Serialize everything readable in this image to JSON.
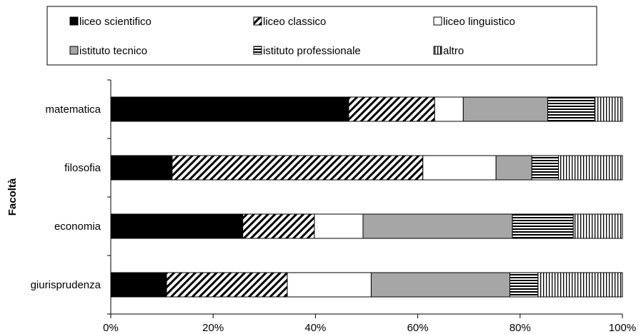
{
  "chart_data": {
    "type": "bar",
    "orientation": "horizontal",
    "stacking": "percent",
    "ylabel": "Facoltà",
    "xlabel": "",
    "xlim": [
      0,
      100
    ],
    "x_ticks": [
      "0%",
      "20%",
      "40%",
      "60%",
      "80%",
      "100%"
    ],
    "categories": [
      "matematica",
      "filosofia",
      "economia",
      "giurisprudenza"
    ],
    "series": [
      {
        "name": "liceo scientifico",
        "pattern": "solid-black",
        "values": [
          46.5,
          12.0,
          25.8,
          10.9
        ]
      },
      {
        "name": "liceo classico",
        "pattern": "diagonal-hatch",
        "values": [
          16.8,
          49.0,
          14.0,
          23.6
        ]
      },
      {
        "name": "liceo linguistico",
        "pattern": "white",
        "values": [
          5.6,
          14.3,
          9.5,
          16.4
        ]
      },
      {
        "name": "istituto tecnico",
        "pattern": "solid-gray",
        "values": [
          16.5,
          7.0,
          29.2,
          27.1
        ]
      },
      {
        "name": "istituto professionale",
        "pattern": "horizontal-lines",
        "values": [
          9.2,
          5.2,
          11.9,
          5.5
        ]
      },
      {
        "name": "altro",
        "pattern": "vertical-lines",
        "values": [
          5.4,
          12.5,
          9.6,
          16.5
        ]
      }
    ],
    "legend_position": "top",
    "grid": false,
    "colors": {
      "gray": "#a6a6a6",
      "black": "#000000",
      "white": "#ffffff"
    }
  }
}
